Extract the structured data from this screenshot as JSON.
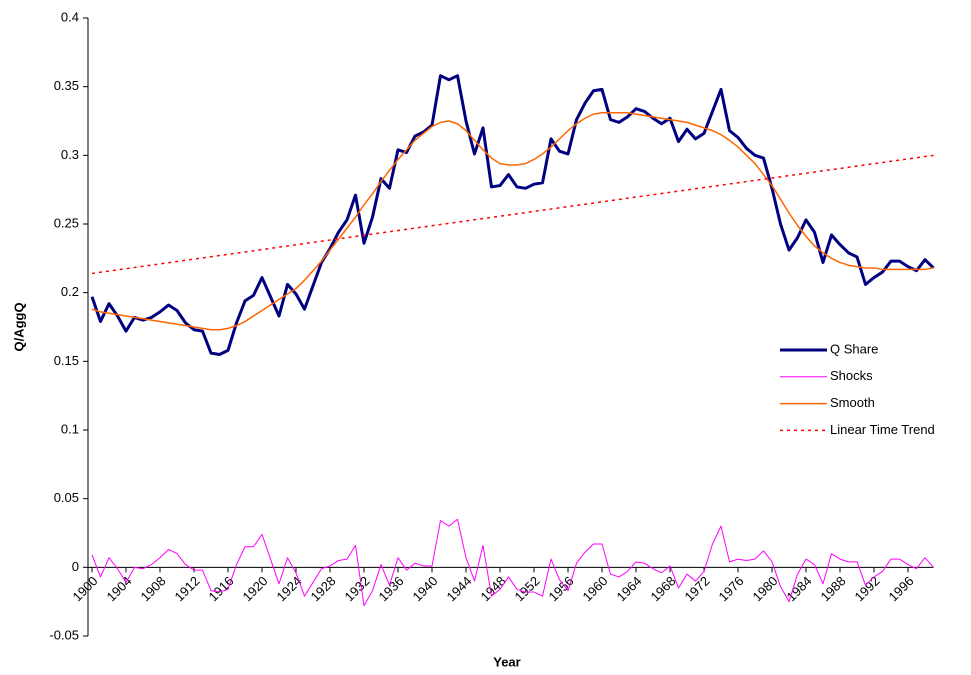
{
  "chart_data": {
    "type": "line",
    "x_label": "Year",
    "y_label": "Q/AggQ",
    "xlim": [
      1900,
      1999
    ],
    "xticks": [
      1900,
      1904,
      1908,
      1912,
      1916,
      1920,
      1924,
      1928,
      1932,
      1936,
      1940,
      1944,
      1948,
      1952,
      1956,
      1960,
      1964,
      1968,
      1972,
      1976,
      1980,
      1984,
      1988,
      1992,
      1996
    ],
    "ylim": [
      -0.05,
      0.4
    ],
    "yticks": [
      -0.05,
      0,
      0.05,
      0.1,
      0.15,
      0.2,
      0.25,
      0.3,
      0.35,
      0.4
    ],
    "legend": "right",
    "grid": false,
    "x": [
      1900,
      1901,
      1902,
      1903,
      1904,
      1905,
      1906,
      1907,
      1908,
      1909,
      1910,
      1911,
      1912,
      1913,
      1914,
      1915,
      1916,
      1917,
      1918,
      1919,
      1920,
      1921,
      1922,
      1923,
      1924,
      1925,
      1926,
      1927,
      1928,
      1929,
      1930,
      1931,
      1932,
      1933,
      1934,
      1935,
      1936,
      1937,
      1938,
      1939,
      1940,
      1941,
      1942,
      1943,
      1944,
      1945,
      1946,
      1947,
      1948,
      1949,
      1950,
      1951,
      1952,
      1953,
      1954,
      1955,
      1956,
      1957,
      1958,
      1959,
      1960,
      1961,
      1962,
      1963,
      1964,
      1965,
      1966,
      1967,
      1968,
      1969,
      1970,
      1971,
      1972,
      1973,
      1974,
      1975,
      1976,
      1977,
      1978,
      1979,
      1980,
      1981,
      1982,
      1983,
      1984,
      1985,
      1986,
      1987,
      1988,
      1989,
      1990,
      1991,
      1992,
      1993,
      1994,
      1995,
      1996,
      1997,
      1998,
      1999
    ],
    "series": [
      {
        "name": "Q Share",
        "color": "#000080",
        "values": [
          0.197,
          0.179,
          0.192,
          0.183,
          0.172,
          0.182,
          0.18,
          0.182,
          0.186,
          0.191,
          0.187,
          0.178,
          0.173,
          0.172,
          0.156,
          0.155,
          0.158,
          0.178,
          0.194,
          0.198,
          0.211,
          0.197,
          0.183,
          0.206,
          0.199,
          0.188,
          0.205,
          0.222,
          0.232,
          0.244,
          0.253,
          0.271,
          0.236,
          0.255,
          0.283,
          0.276,
          0.304,
          0.302,
          0.314,
          0.317,
          0.322,
          0.358,
          0.355,
          0.358,
          0.325,
          0.301,
          0.32,
          0.277,
          0.278,
          0.286,
          0.277,
          0.276,
          0.279,
          0.28,
          0.312,
          0.303,
          0.301,
          0.326,
          0.338,
          0.347,
          0.348,
          0.326,
          0.324,
          0.328,
          0.334,
          0.332,
          0.327,
          0.323,
          0.327,
          0.31,
          0.319,
          0.312,
          0.316,
          0.332,
          0.348,
          0.318,
          0.313,
          0.305,
          0.3,
          0.298,
          0.276,
          0.25,
          0.231,
          0.24,
          0.253,
          0.244,
          0.222,
          0.242,
          0.235,
          0.229,
          0.226,
          0.206,
          0.211,
          0.215,
          0.223,
          0.223,
          0.219,
          0.216,
          0.224,
          0.218
        ]
      },
      {
        "name": "Shocks",
        "color": "#ff00ff",
        "values": [
          0.009,
          -0.007,
          0.007,
          -0.001,
          -0.011,
          0,
          -0.001,
          0.002,
          0.007,
          0.013,
          0.01,
          0.002,
          -0.002,
          -0.002,
          -0.017,
          -0.018,
          -0.016,
          0.002,
          0.015,
          0.015,
          0.024,
          0.006,
          -0.012,
          0.007,
          -0.004,
          -0.021,
          -0.011,
          -0.001,
          0.001,
          0.005,
          0.006,
          0.016,
          -0.028,
          -0.017,
          0.002,
          -0.013,
          0.007,
          -0.002,
          0.003,
          0.001,
          0.001,
          0.034,
          0.03,
          0.035,
          0.007,
          -0.01,
          0.016,
          -0.021,
          -0.016,
          -0.007,
          -0.016,
          -0.018,
          -0.018,
          -0.021,
          0.006,
          -0.009,
          -0.017,
          0.003,
          0.011,
          0.017,
          0.017,
          -0.005,
          -0.007,
          -0.003,
          0.004,
          0.003,
          -0.001,
          -0.004,
          0.001,
          -0.015,
          -0.005,
          -0.01,
          -0.003,
          0.017,
          0.03,
          0.004,
          0.006,
          0.005,
          0.006,
          0.012,
          0.004,
          -0.014,
          -0.025,
          -0.005,
          0.006,
          0.002,
          -0.012,
          0.01,
          0.006,
          0.004,
          0.004,
          -0.013,
          -0.007,
          -0.003,
          0.006,
          0.006,
          0.002,
          -0.001,
          0.007,
          0
        ]
      },
      {
        "name": "Smooth",
        "color": "#ff6600",
        "values": [
          0.188,
          0.186,
          0.185,
          0.184,
          0.183,
          0.182,
          0.181,
          0.18,
          0.179,
          0.178,
          0.177,
          0.176,
          0.175,
          0.174,
          0.173,
          0.173,
          0.174,
          0.176,
          0.179,
          0.183,
          0.187,
          0.191,
          0.195,
          0.199,
          0.203,
          0.209,
          0.216,
          0.223,
          0.231,
          0.239,
          0.247,
          0.255,
          0.264,
          0.272,
          0.281,
          0.289,
          0.297,
          0.304,
          0.311,
          0.316,
          0.321,
          0.324,
          0.325,
          0.323,
          0.318,
          0.311,
          0.304,
          0.298,
          0.294,
          0.293,
          0.293,
          0.294,
          0.297,
          0.301,
          0.306,
          0.312,
          0.318,
          0.323,
          0.327,
          0.33,
          0.331,
          0.331,
          0.331,
          0.331,
          0.33,
          0.329,
          0.328,
          0.327,
          0.326,
          0.325,
          0.324,
          0.322,
          0.32,
          0.318,
          0.315,
          0.311,
          0.306,
          0.3,
          0.294,
          0.286,
          0.278,
          0.268,
          0.258,
          0.249,
          0.241,
          0.234,
          0.229,
          0.225,
          0.222,
          0.22,
          0.219,
          0.218,
          0.218,
          0.217,
          0.217,
          0.217,
          0.217,
          0.217,
          0.217,
          0.218
        ]
      },
      {
        "name": "Linear Time Trend",
        "color": "#ff0000",
        "style": "dashed",
        "x": [
          1900,
          1999
        ],
        "values": [
          0.214,
          0.3
        ]
      }
    ]
  }
}
